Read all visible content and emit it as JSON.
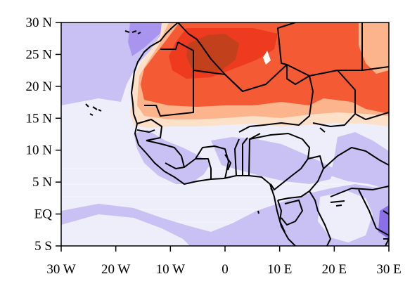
{
  "map": {
    "type": "filled-contour-map",
    "region": "West Africa",
    "extent": {
      "lon": [
        -30,
        30
      ],
      "lat": [
        -5,
        30
      ]
    },
    "lat_ticks": [
      {
        "value": 30,
        "label": "30 N"
      },
      {
        "value": 25,
        "label": "25 N"
      },
      {
        "value": 20,
        "label": "20 N"
      },
      {
        "value": 15,
        "label": "15 N"
      },
      {
        "value": 10,
        "label": "10 N"
      },
      {
        "value": 5,
        "label": "5 N"
      },
      {
        "value": 0,
        "label": "EQ"
      },
      {
        "value": -5,
        "label": "5 S"
      }
    ],
    "lon_ticks": [
      {
        "value": -30,
        "label": "30 W"
      },
      {
        "value": -20,
        "label": "20 W"
      },
      {
        "value": -10,
        "label": "10 W"
      },
      {
        "value": 0,
        "label": "0"
      },
      {
        "value": 10,
        "label": "10 E"
      },
      {
        "value": 20,
        "label": "20 E"
      },
      {
        "value": 30,
        "label": "30 E"
      }
    ],
    "colors": {
      "background": "#eeeefa",
      "light_purple": "#c9c0f4",
      "mid_purple": "#a995ef",
      "dark_purple": "#8b6fe6",
      "peach": "#fde0c8",
      "light_orange": "#fbb48c",
      "red_orange": "#f45a33",
      "red": "#ee3a1f",
      "brown": "#c3401d",
      "coastline": "#000000"
    }
  }
}
